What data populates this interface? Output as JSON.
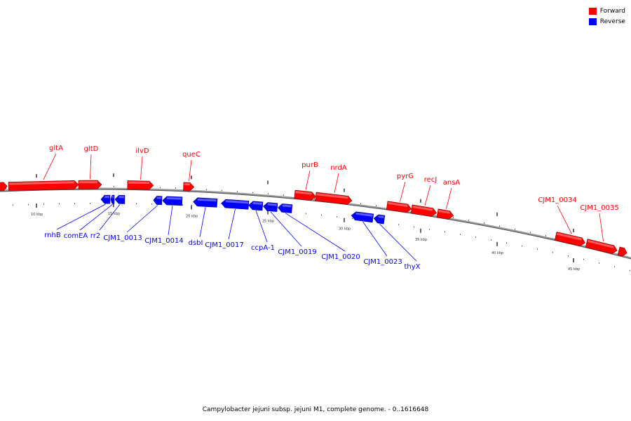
{
  "legend": {
    "forward_label": "Forward",
    "reverse_label": "Reverse",
    "forward_color": "#ff0000",
    "reverse_color": "#0000ff"
  },
  "caption": "Campylobacter jejuni subsp. jejuni M1, complete genome. - 0..1616648",
  "ticks": [
    {
      "kbp": 10,
      "label": "10 kbp"
    },
    {
      "kbp": 15,
      "label": "15 kbp"
    },
    {
      "kbp": 20,
      "label": "20 kbp"
    },
    {
      "kbp": 25,
      "label": "25 kbp"
    },
    {
      "kbp": 30,
      "label": "30 kbp"
    },
    {
      "kbp": 35,
      "label": "35 kbp"
    },
    {
      "kbp": 40,
      "label": "40 kbp"
    },
    {
      "kbp": 45,
      "label": "45 kbp"
    }
  ],
  "genes_forward": [
    {
      "name": "gltA"
    },
    {
      "name": "gltD"
    },
    {
      "name": "ilvD"
    },
    {
      "name": "queC"
    },
    {
      "name": "purB"
    },
    {
      "name": "nrdA"
    },
    {
      "name": "pyrG"
    },
    {
      "name": "recJ"
    },
    {
      "name": "ansA"
    },
    {
      "name": "CJM1_0034"
    },
    {
      "name": "CJM1_0035"
    }
  ],
  "genes_reverse": [
    {
      "name": "rnhB"
    },
    {
      "name": "comEA"
    },
    {
      "name": "rr2"
    },
    {
      "name": "CJM1_0013"
    },
    {
      "name": "CJM1_0014"
    },
    {
      "name": "dsbI"
    },
    {
      "name": "CJM1_0017"
    },
    {
      "name": "ccpA-1"
    },
    {
      "name": "CJM1_0019"
    },
    {
      "name": "CJM1_0020"
    },
    {
      "name": "CJM1_0023"
    },
    {
      "name": "thyX"
    }
  ]
}
